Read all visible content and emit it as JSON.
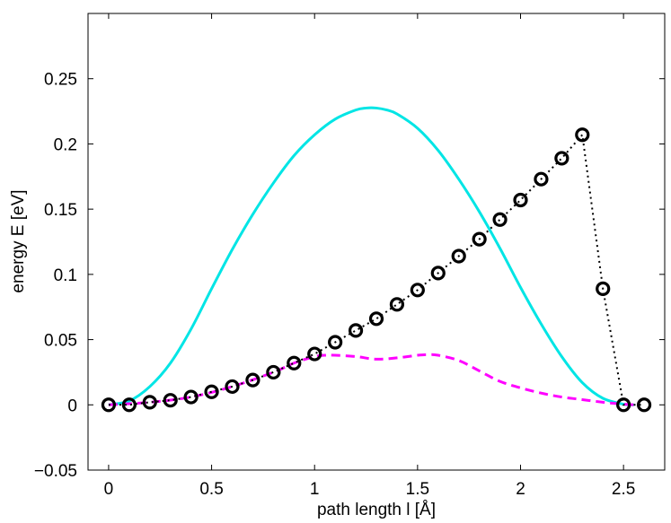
{
  "chart_data": {
    "type": "line",
    "title": "",
    "xlabel": "path length l [Å]",
    "ylabel": "energy E [eV]",
    "xlim": [
      -0.1,
      2.7
    ],
    "ylim": [
      -0.05,
      0.3
    ],
    "xticks": [
      0,
      0.5,
      1,
      1.5,
      2,
      2.5
    ],
    "xtick_labels": [
      "0",
      "0.5",
      "1",
      "1.5",
      "2",
      "2.5"
    ],
    "yticks": [
      -0.05,
      0,
      0.05,
      0.1,
      0.15,
      0.2,
      0.25
    ],
    "ytick_labels": [
      "−0.05",
      "0",
      "0.05",
      "0.1",
      "0.15",
      "0.2",
      "0.25"
    ],
    "grid": false,
    "legend": "none",
    "series": [
      {
        "name": "cyan-solid-curve",
        "style": "solid",
        "color": "#00e5e5",
        "x": [
          0,
          0.1,
          0.2,
          0.3,
          0.4,
          0.5,
          0.6,
          0.7,
          0.8,
          0.9,
          1.0,
          1.1,
          1.2,
          1.25,
          1.3,
          1.35,
          1.4,
          1.5,
          1.6,
          1.7,
          1.8,
          1.9,
          2.0,
          2.1,
          2.2,
          2.3,
          2.4,
          2.5,
          2.55
        ],
        "y": [
          0,
          0.003,
          0.014,
          0.032,
          0.058,
          0.089,
          0.119,
          0.146,
          0.17,
          0.191,
          0.207,
          0.219,
          0.226,
          0.2275,
          0.2275,
          0.226,
          0.223,
          0.212,
          0.195,
          0.173,
          0.148,
          0.12,
          0.09,
          0.062,
          0.037,
          0.017,
          0.005,
          0.0005,
          0
        ]
      },
      {
        "name": "magenta-dashed-curve",
        "style": "dashed",
        "color": "#ff00ff",
        "x": [
          0,
          0.2,
          0.4,
          0.6,
          0.8,
          0.9,
          1.0,
          1.05,
          1.1,
          1.2,
          1.3,
          1.4,
          1.5,
          1.55,
          1.6,
          1.7,
          1.8,
          1.9,
          2.0,
          2.1,
          2.2,
          2.3,
          2.4,
          2.5,
          2.55
        ],
        "y": [
          0,
          0.002,
          0.006,
          0.014,
          0.025,
          0.032,
          0.037,
          0.038,
          0.038,
          0.037,
          0.035,
          0.036,
          0.038,
          0.0385,
          0.038,
          0.034,
          0.026,
          0.018,
          0.013,
          0.009,
          0.006,
          0.004,
          0.002,
          0.0005,
          0
        ]
      },
      {
        "name": "black-circle-images",
        "style": "dotted",
        "marker": "circle",
        "color": "#000000",
        "x": [
          0,
          0.1,
          0.2,
          0.3,
          0.4,
          0.5,
          0.6,
          0.7,
          0.8,
          0.9,
          1.0,
          1.1,
          1.2,
          1.3,
          1.4,
          1.5,
          1.6,
          1.7,
          1.8,
          1.9,
          2.0,
          2.1,
          2.2,
          2.3,
          2.4,
          2.5,
          2.6
        ],
        "y": [
          0,
          0,
          0.002,
          0.0035,
          0.006,
          0.01,
          0.014,
          0.019,
          0.025,
          0.032,
          0.039,
          0.048,
          0.057,
          0.066,
          0.077,
          0.088,
          0.101,
          0.114,
          0.127,
          0.142,
          0.157,
          0.173,
          0.189,
          0.207,
          0.089,
          0,
          0
        ]
      }
    ]
  }
}
